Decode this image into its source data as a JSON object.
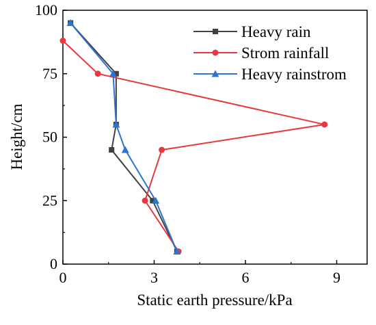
{
  "chart_data": {
    "type": "line",
    "title": "",
    "xlabel": "Static earth pressure/kPa",
    "ylabel": "Height/cm",
    "xlim": [
      0,
      10
    ],
    "ylim": [
      0,
      100
    ],
    "xticks": [
      "0",
      "3",
      "6",
      "9"
    ],
    "xtick_values": [
      0,
      3,
      6,
      9
    ],
    "yticks": [
      "0",
      "25",
      "50",
      "75",
      "100"
    ],
    "ytick_values": [
      0,
      25,
      50,
      75,
      100
    ],
    "grid": false,
    "legend_position": "top-right",
    "series": [
      {
        "name": "Heavy rain",
        "marker": "square",
        "color": "#404040",
        "points": [
          [
            0.25,
            95
          ],
          [
            1.75,
            75
          ],
          [
            1.75,
            55
          ],
          [
            1.6,
            45
          ],
          [
            2.95,
            25
          ],
          [
            3.75,
            5
          ]
        ]
      },
      {
        "name": "Strom rainfall",
        "marker": "circle",
        "color": "#e8383d",
        "points": [
          [
            0.0,
            88
          ],
          [
            1.15,
            75
          ],
          [
            8.6,
            55
          ],
          [
            3.25,
            45
          ],
          [
            2.7,
            25
          ],
          [
            3.8,
            5
          ]
        ]
      },
      {
        "name": "Heavy rainstrom",
        "marker": "triangle",
        "color": "#2d73d0",
        "points": [
          [
            0.25,
            95
          ],
          [
            1.65,
            75
          ],
          [
            1.75,
            55
          ],
          [
            2.05,
            45
          ],
          [
            3.05,
            25
          ],
          [
            3.75,
            5
          ]
        ]
      }
    ]
  }
}
